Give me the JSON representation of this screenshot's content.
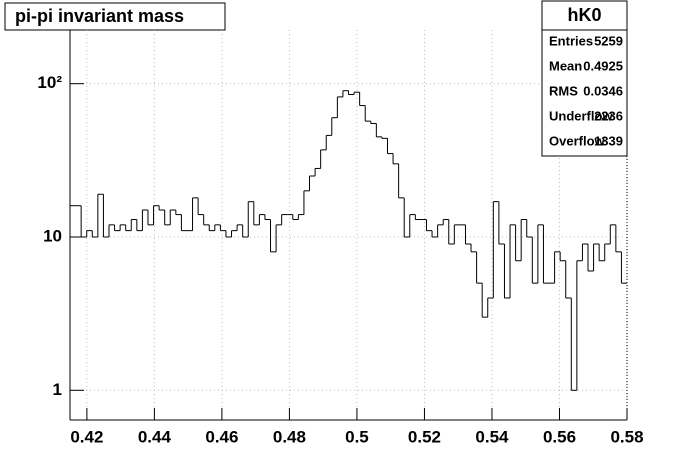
{
  "chart_data": {
    "type": "histogram",
    "title": "pi-pi invariant mass",
    "bins": [
      0.415,
      0.41665,
      0.4183,
      0.41995,
      0.4216,
      0.42325,
      0.4249,
      0.42655,
      0.4282,
      0.42985,
      0.4315,
      0.43315,
      0.4348,
      0.43645,
      0.4381,
      0.43975,
      0.4414,
      0.44305,
      0.4447,
      0.44635,
      0.448,
      0.44965,
      0.4513,
      0.45295,
      0.4546,
      0.45625,
      0.4579,
      0.45955,
      0.4612,
      0.46285,
      0.4645,
      0.46615,
      0.4678,
      0.46945,
      0.4711,
      0.47275,
      0.4744,
      0.47605,
      0.4777,
      0.47935,
      0.481,
      0.48265,
      0.4843,
      0.48595,
      0.4876,
      0.48925,
      0.4909,
      0.49255,
      0.4942,
      0.49585,
      0.4975,
      0.49915,
      0.5008,
      0.50245,
      0.5041,
      0.50575,
      0.5074,
      0.50905,
      0.5107,
      0.51235,
      0.514,
      0.51565,
      0.5173,
      0.51895,
      0.5206,
      0.52225,
      0.5239,
      0.52555,
      0.5272,
      0.52885,
      0.5305,
      0.53215,
      0.5338,
      0.53545,
      0.5371,
      0.53875,
      0.5404,
      0.54205,
      0.5437,
      0.54535,
      0.547,
      0.54865,
      0.5503,
      0.55195,
      0.5536,
      0.55525,
      0.5569,
      0.55855,
      0.5602,
      0.56185,
      0.5635,
      0.56515,
      0.5668,
      0.56845,
      0.5701,
      0.57175,
      0.5734,
      0.57505,
      0.5767,
      0.57835,
      0.58
    ],
    "values": [
      16,
      16,
      10,
      11,
      10,
      19,
      10,
      12,
      11,
      12,
      11,
      13,
      11,
      15,
      12,
      16,
      15,
      12,
      15,
      14,
      11,
      11,
      18,
      14,
      12,
      11,
      12,
      11,
      10,
      11,
      12,
      10,
      17,
      12,
      14,
      13,
      8,
      12,
      14,
      14,
      13,
      14,
      20,
      25,
      28,
      37,
      46,
      60,
      82,
      90,
      85,
      88,
      72,
      57,
      55,
      45,
      44,
      35,
      30,
      18,
      10,
      14,
      13,
      13,
      11,
      10,
      12,
      13,
      9,
      12,
      12,
      9,
      8,
      5,
      3,
      4,
      17,
      9,
      4,
      12,
      7,
      13,
      10,
      5,
      12,
      5,
      5,
      8,
      7,
      4,
      1,
      7,
      9,
      6,
      9,
      7,
      9,
      12,
      8,
      5
    ],
    "color": "#000000",
    "log_y": true,
    "grid": true,
    "xlim": [
      0.415,
      0.58
    ],
    "xticks": [
      0.42,
      0.44,
      0.46,
      0.48,
      0.5,
      0.52,
      0.54,
      0.56,
      0.58
    ],
    "ylim": [
      0.64,
      224
    ],
    "yticks": [
      1,
      10,
      {
        "value": 100,
        "label": "10²"
      }
    ],
    "stats": {
      "title": "hK0",
      "rows": [
        {
          "label": "Entries",
          "value": 5259
        },
        {
          "label": "Mean",
          "value": 0.4925
        },
        {
          "label": "RMS",
          "value": 0.0346
        },
        {
          "label": "Underflow",
          "value": 2236
        },
        {
          "label": "Overflow",
          "value": 1339
        }
      ]
    }
  }
}
